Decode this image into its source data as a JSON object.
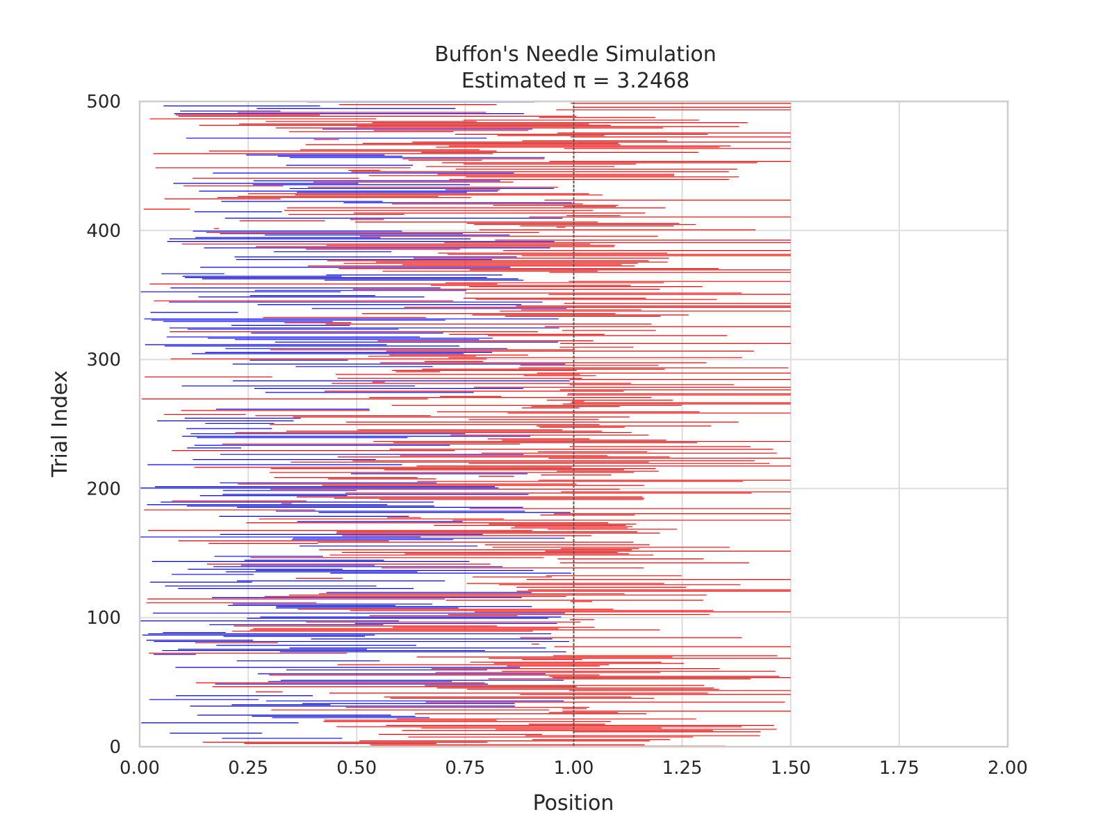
{
  "chart_data": {
    "type": "needle-lines",
    "title": "Buffon's Needle Simulation",
    "subtitle": "Estimated π = 3.2468",
    "xlabel": "Position",
    "ylabel": "Trial Index",
    "xlim": [
      0,
      2
    ],
    "ylim": [
      0,
      500
    ],
    "x_ticks": [
      "0.00",
      "0.25",
      "0.50",
      "0.75",
      "1.00",
      "1.25",
      "1.50",
      "1.75",
      "2.00"
    ],
    "y_ticks": [
      "0",
      "100",
      "200",
      "300",
      "400",
      "500"
    ],
    "grid": true,
    "reference_line": {
      "x": 1.0,
      "style": "dashed",
      "color": "#555555"
    },
    "colors": {
      "crossing": "#ff0000",
      "not_crossing": "#0000ff"
    },
    "n_trials": 500,
    "needle_length": 1.0,
    "x_start_range": [
      0,
      1
    ],
    "crossing_count": 308,
    "not_crossing_count": 192,
    "max_x_end": 1.5
  }
}
